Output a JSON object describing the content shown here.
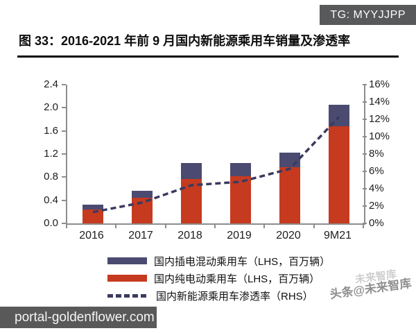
{
  "badge_tg": {
    "text": "TG: MYYJJPP"
  },
  "title": "图 33：2016-2021 年前 9 月国内新能源乘用车销量及渗透率",
  "watermark": {
    "text": "头条@未来智库",
    "ghost": "未来智库"
  },
  "footer_badge": {
    "text": "portal-goldenflower.com"
  },
  "chart_data": {
    "type": "bar",
    "subtype": "stacked-bars-with-dashed-line",
    "categories": [
      "2016",
      "2017",
      "2018",
      "2019",
      "2020",
      "9M21"
    ],
    "series": [
      {
        "name": "国内纯电动乘用车（LHS，百万辆）",
        "kind": "bar",
        "stack": "sales",
        "color": "#c63a1f",
        "values": [
          0.24,
          0.45,
          0.77,
          0.82,
          0.97,
          1.68
        ]
      },
      {
        "name": "国内插电混动乘用车（LHS，百万辆）",
        "kind": "bar",
        "stack": "sales",
        "color": "#4b4a70",
        "values": [
          0.08,
          0.11,
          0.28,
          0.23,
          0.26,
          0.37
        ]
      },
      {
        "name": "国内新能源乘用车渗透率（RHS）",
        "kind": "line",
        "style": "dashed",
        "axis": "right",
        "color": "#3a3a5e",
        "values_pct": [
          1.3,
          2.4,
          4.4,
          4.8,
          6.3,
          12.3
        ]
      }
    ],
    "stack_totals": [
      0.32,
      0.56,
      1.05,
      1.05,
      1.23,
      2.05
    ],
    "left_axis": {
      "min": 0,
      "max": 2.4,
      "step": 0.4,
      "labels": [
        "0.0",
        "0.4",
        "0.8",
        "1.2",
        "1.6",
        "2.0",
        "2.4"
      ]
    },
    "right_axis": {
      "min": 0,
      "max": 16,
      "step": 2,
      "unit": "%",
      "labels": [
        "0%",
        "2%",
        "4%",
        "6%",
        "8%",
        "10%",
        "12%",
        "14%",
        "16%"
      ]
    },
    "grid": false,
    "legend_position": "bottom",
    "legend": [
      {
        "swatch": "bar",
        "color": "#4b4a70",
        "label": "国内插电混动乘用车（LHS，百万辆）"
      },
      {
        "swatch": "bar",
        "color": "#c63a1f",
        "label": "国内纯电动乘用车（LHS，百万辆）"
      },
      {
        "swatch": "dash",
        "color": "#3a3a5e",
        "label": "国内新能源乘用车渗透率（RHS）"
      }
    ]
  }
}
